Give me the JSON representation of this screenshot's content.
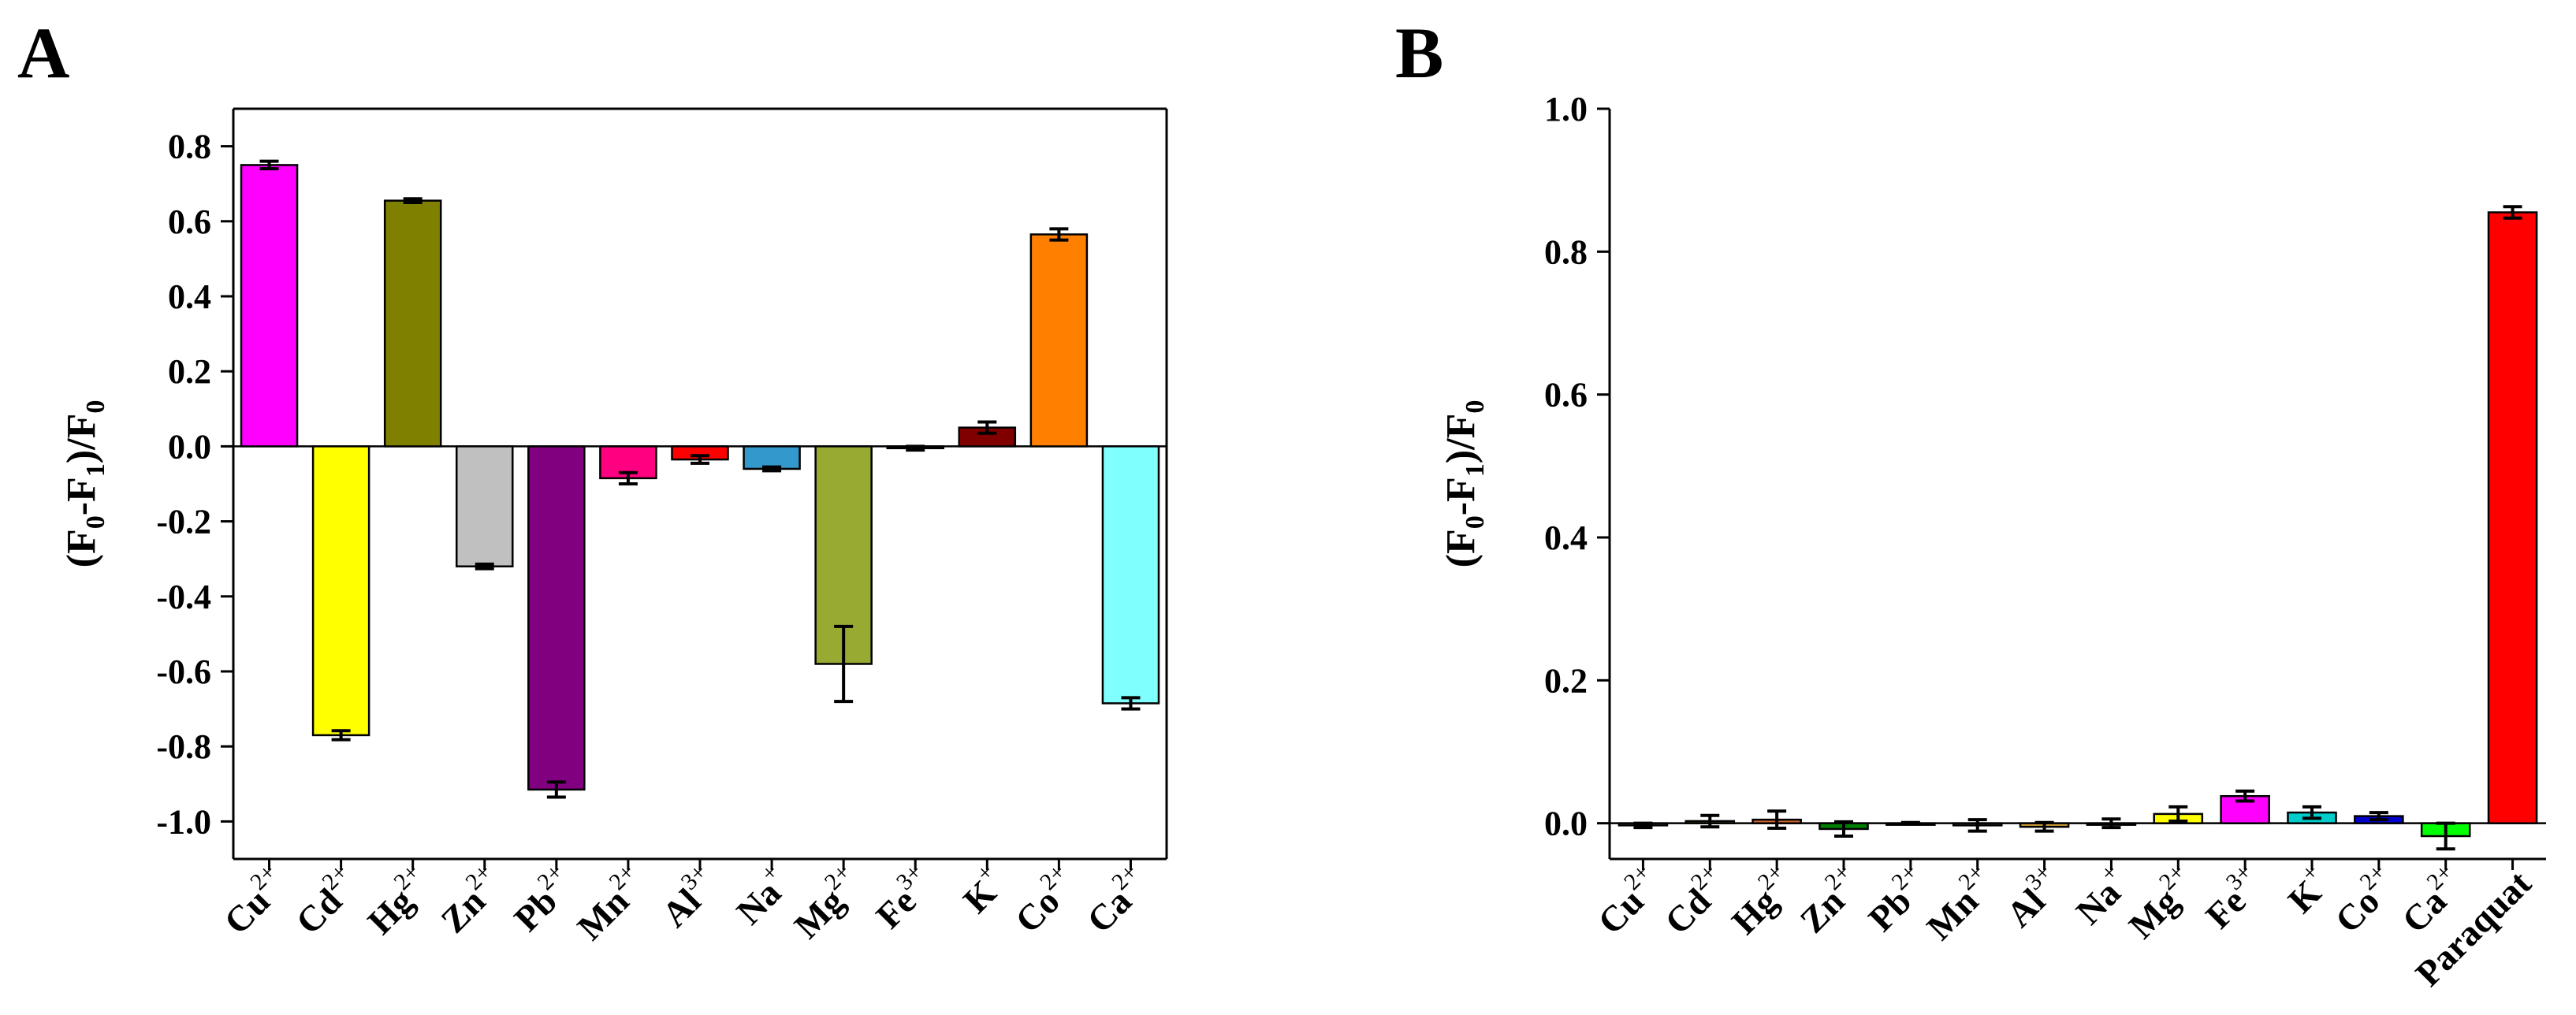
{
  "chart_data": [
    {
      "panel": "A",
      "type": "bar",
      "ylabel": "(F0-F1)/F0",
      "ylim": [
        -1.1,
        0.9
      ],
      "yticks": [
        0.8,
        0.6,
        0.4,
        0.2,
        0.0,
        -0.2,
        -0.4,
        -0.6,
        -0.8,
        -1.0
      ],
      "ytick_labels": [
        "0.8",
        "0.6",
        "0.4",
        "0.2",
        "0.0",
        "-0.2",
        "-0.4",
        "-0.6",
        "-0.8",
        "-1.0"
      ],
      "categories": [
        {
          "base": "Cu",
          "sup": "2+"
        },
        {
          "base": "Cd",
          "sup": "2+"
        },
        {
          "base": "Hg",
          "sup": "2+"
        },
        {
          "base": "Zn",
          "sup": "2+"
        },
        {
          "base": "Pb",
          "sup": "2+"
        },
        {
          "base": "Mn",
          "sup": "2+"
        },
        {
          "base": "Al",
          "sup": "3+"
        },
        {
          "base": "Na",
          "sup": "+"
        },
        {
          "base": "Mg",
          "sup": "2+"
        },
        {
          "base": "Fe",
          "sup": "3+"
        },
        {
          "base": "K",
          "sup": "+"
        },
        {
          "base": "Co",
          "sup": "2+"
        },
        {
          "base": "Ca",
          "sup": "2+"
        }
      ],
      "values": [
        0.75,
        -0.77,
        0.655,
        -0.32,
        -0.915,
        -0.085,
        -0.035,
        -0.06,
        -0.58,
        -0.005,
        0.05,
        0.565,
        -0.685
      ],
      "errors": [
        0.01,
        0.012,
        0.005,
        0.006,
        0.02,
        0.015,
        0.01,
        0.005,
        0.1,
        0.005,
        0.015,
        0.015,
        0.015
      ],
      "colors": [
        "#FF00FF",
        "#FFFF00",
        "#808000",
        "#C0C0C0",
        "#800080",
        "#FF0080",
        "#FF0000",
        "#3399CC",
        "#99AA33",
        "#555555",
        "#800000",
        "#FF8000",
        "#80FFFF"
      ]
    },
    {
      "panel": "B",
      "type": "bar",
      "ylabel": "(F0-F1)/F0",
      "ylim": [
        -0.05,
        1.0
      ],
      "yticks": [
        1.0,
        0.8,
        0.6,
        0.4,
        0.2,
        0.0
      ],
      "ytick_labels": [
        "1.0",
        "0.8",
        "0.6",
        "0.4",
        "0.2",
        "0.0"
      ],
      "categories": [
        {
          "base": "Cu",
          "sup": "2+"
        },
        {
          "base": "Cd",
          "sup": "2+"
        },
        {
          "base": "Hg",
          "sup": "2+"
        },
        {
          "base": "Zn",
          "sup": "2+"
        },
        {
          "base": "Pb",
          "sup": "2+"
        },
        {
          "base": "Mn",
          "sup": "2+"
        },
        {
          "base": "Al",
          "sup": "3+"
        },
        {
          "base": "Na",
          "sup": "+"
        },
        {
          "base": "Mg",
          "sup": "2+"
        },
        {
          "base": "Fe",
          "sup": "3+"
        },
        {
          "base": "K",
          "sup": "+"
        },
        {
          "base": "Co",
          "sup": "2+"
        },
        {
          "base": "Ca",
          "sup": "2+"
        },
        {
          "base": "Paraquat",
          "sup": ""
        }
      ],
      "values": [
        -0.003,
        0.003,
        0.005,
        -0.008,
        0.0,
        -0.003,
        -0.005,
        0.0,
        0.013,
        0.038,
        0.015,
        0.01,
        -0.018,
        0.855
      ],
      "errors": [
        0.003,
        0.008,
        0.012,
        0.01,
        0.001,
        0.008,
        0.006,
        0.006,
        0.01,
        0.007,
        0.008,
        0.005,
        0.018,
        0.008
      ],
      "colors": [
        "#808080",
        "#808000",
        "#CC6633",
        "#008000",
        "#808080",
        "#808080",
        "#CC9933",
        "#808080",
        "#FFFF00",
        "#FF00FF",
        "#00CCCC",
        "#0000CC",
        "#00FF00",
        "#FF0000"
      ]
    }
  ]
}
